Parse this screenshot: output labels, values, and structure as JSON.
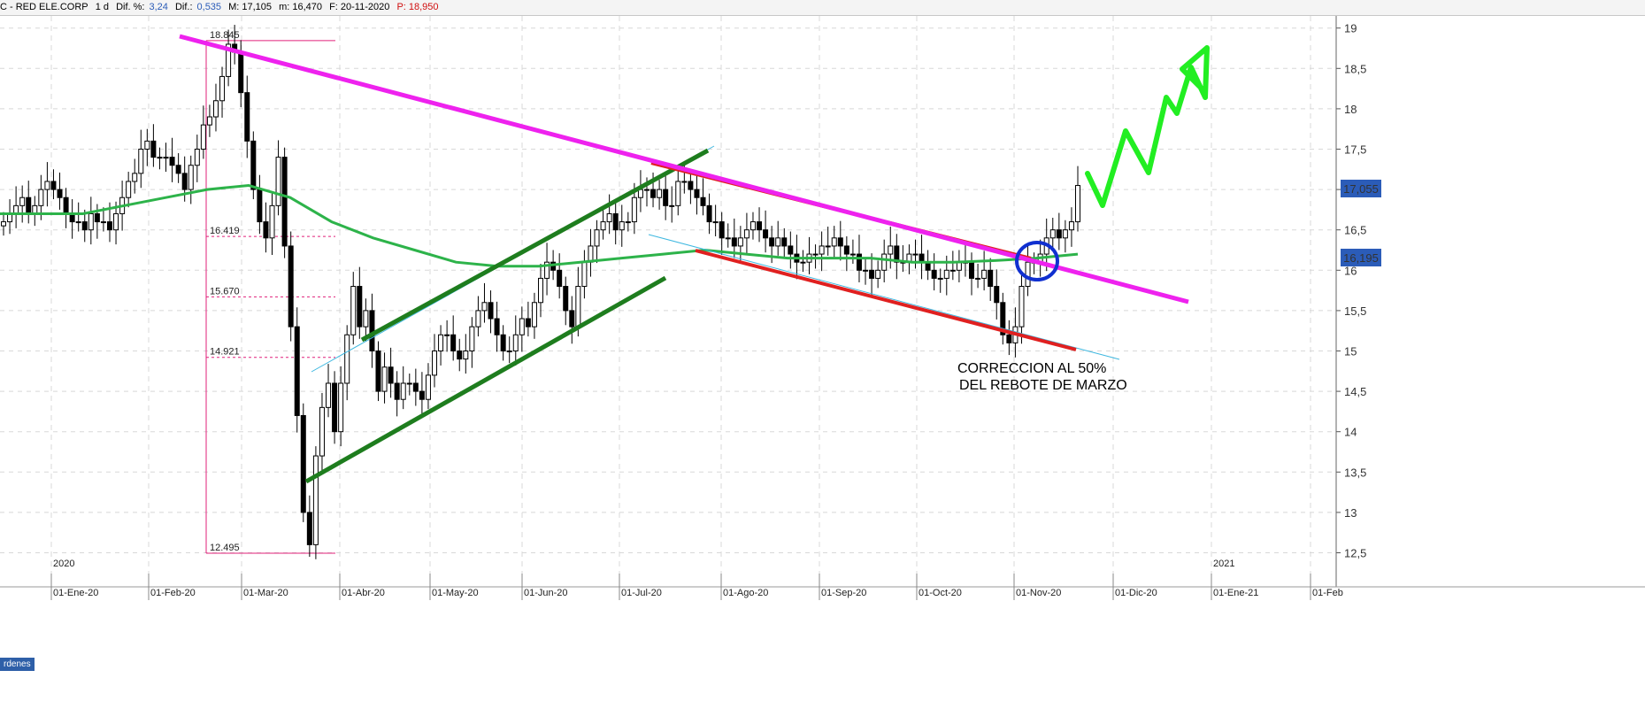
{
  "header": {
    "prefix": "C - RED ELE.CORP",
    "period": "1 d",
    "dif_pct_label": "Dif. %:",
    "dif_pct": "3,24",
    "dif_label": "Dif.:",
    "dif": "0,535",
    "max": "M: 17,105",
    "min": "m: 16,470",
    "date": "F: 20-11-2020",
    "price": "P: 18,950"
  },
  "ordenes_label": "rdenes",
  "colors": {
    "ma": "#2db34a",
    "resistance": "#ee22ee",
    "channel": "#1e7d1e",
    "support": "#e02020",
    "cyan": "#3fb8e0",
    "arrow": "#22ee22",
    "circle": "#1030d0",
    "fibo": "#e0207a",
    "price_tag": "#2b5cb8"
  },
  "chart_data": {
    "type": "candlestick",
    "yticks": [
      "19",
      "18,5",
      "18",
      "17,5",
      "17",
      "16,5",
      "16",
      "15,5",
      "15",
      "14,5",
      "14",
      "13,5",
      "13",
      "12,5"
    ],
    "ylim": [
      12.3,
      19.1
    ],
    "xticks": [
      "01-Ene-20",
      "01-Feb-20",
      "01-Mar-20",
      "01-Abr-20",
      "01-May-20",
      "01-Jun-20",
      "01-Jul-20",
      "01-Ago-20",
      "01-Sep-20",
      "01-Oct-20",
      "01-Nov-20",
      "01-Dic-20",
      "01-Ene-21",
      "01-Feb"
    ],
    "year_labels": [
      "2020",
      "2021"
    ],
    "fib_levels": [
      {
        "label": "18.845",
        "value": 18.845
      },
      {
        "label": "16.419",
        "value": 16.419
      },
      {
        "label": "15.670",
        "value": 15.67
      },
      {
        "label": "14.921",
        "value": 14.921
      },
      {
        "label": "12.495",
        "value": 12.495
      }
    ],
    "price_tags": [
      "17,055",
      "16,195"
    ],
    "annotation": [
      "CORRECCION AL 50%",
      "DEL REBOTE DE MARZO"
    ],
    "series": [
      {
        "values": [
          16.6,
          16.7,
          16.8,
          16.9,
          16.7,
          16.8,
          17.0,
          17.1,
          17.0,
          16.9,
          16.7,
          16.6,
          16.6,
          16.5,
          16.7,
          16.6,
          16.6,
          16.5,
          16.7,
          16.9,
          17.1,
          17.2,
          17.5,
          17.6,
          17.4,
          17.4,
          17.4,
          17.3,
          17.2,
          17.0,
          17.3,
          17.5,
          17.8,
          17.9,
          18.1,
          18.4,
          18.8,
          18.7,
          18.2,
          17.6,
          17.0,
          16.6,
          16.4,
          16.8,
          17.4,
          16.3,
          15.3,
          14.2,
          13.0,
          12.6,
          13.7,
          14.3,
          14.6,
          14.0,
          14.6,
          15.2,
          15.8,
          15.3,
          15.5,
          15.0,
          14.5,
          14.8,
          14.6,
          14.4,
          14.6,
          14.6,
          14.5,
          14.4,
          14.7,
          15.0,
          15.2,
          15.2,
          15.0,
          14.9,
          15.0,
          15.3,
          15.5,
          15.6,
          15.4,
          15.2,
          15.0,
          15.0,
          15.2,
          15.4,
          15.3,
          15.6,
          15.9,
          16.1,
          16.0,
          15.8,
          15.5,
          15.3,
          15.8,
          16.1,
          16.3,
          16.5,
          16.6,
          16.7,
          16.5,
          16.6,
          16.6,
          16.9,
          17.0,
          17.0,
          16.9,
          17.0,
          16.8,
          16.8,
          17.1,
          17.1,
          17.0,
          16.9,
          16.8,
          16.6,
          16.6,
          16.4,
          16.4,
          16.3,
          16.4,
          16.5,
          16.6,
          16.5,
          16.4,
          16.3,
          16.4,
          16.3,
          16.2,
          16.1,
          16.1,
          16.2,
          16.2,
          16.3,
          16.3,
          16.4,
          16.3,
          16.2,
          16.2,
          16.0,
          16.0,
          15.9,
          16.0,
          16.2,
          16.3,
          16.1,
          16.1,
          16.2,
          16.2,
          16.1,
          16.0,
          15.9,
          15.9,
          16.0,
          16.0,
          16.1,
          16.1,
          15.9,
          15.9,
          16.0,
          15.8,
          15.6,
          15.2,
          15.1,
          15.3,
          15.8,
          16.1,
          16.1,
          16.2,
          16.4,
          16.5,
          16.4,
          16.5,
          16.6,
          17.05
        ]
      }
    ],
    "moving_average": [
      16.7,
      16.7,
      16.7,
      16.8,
      16.9,
      17.0,
      17.05,
      16.9,
      16.6,
      16.4,
      16.25,
      16.1,
      16.05,
      16.05,
      16.1,
      16.15,
      16.2,
      16.25,
      16.2,
      16.15,
      16.15,
      16.15,
      16.1,
      16.1,
      16.12,
      16.15,
      16.2
    ]
  }
}
